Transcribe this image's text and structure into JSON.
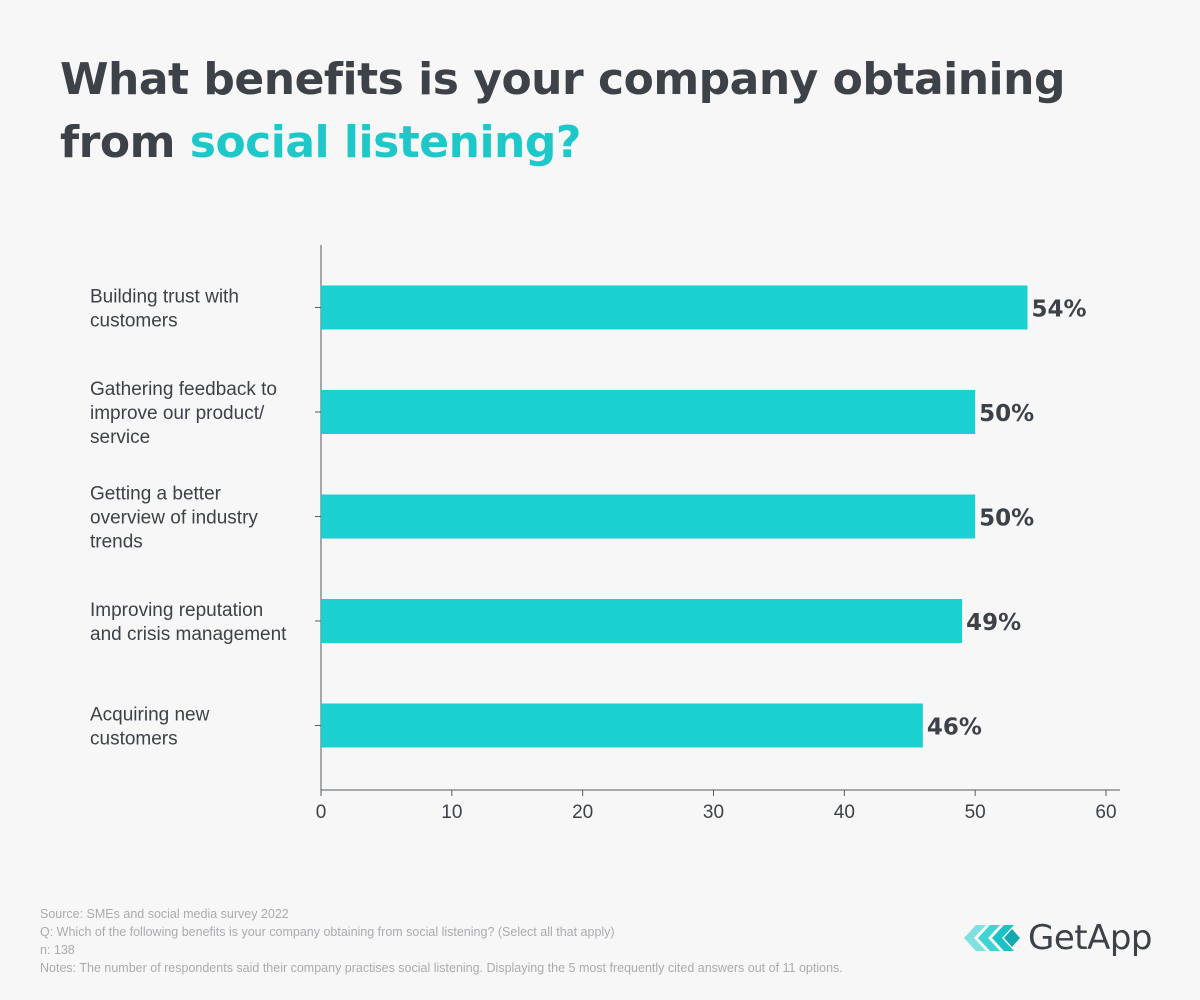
{
  "title": {
    "part1": "What benefits is your company obtaining from ",
    "accent": "social listening?"
  },
  "colors": {
    "bar": "#1ad0d0",
    "title_dark": "#3d4249",
    "title_accent": "#1ec8c9",
    "axis": "#555b62",
    "label": "#3d4249",
    "footer": "#a9abae",
    "background": "#f7f7f7"
  },
  "chart_data": {
    "type": "bar",
    "orientation": "horizontal",
    "categories": [
      [
        "Building trust with",
        "customers"
      ],
      [
        "Gathering feedback to",
        "improve our product/",
        "service"
      ],
      [
        "Getting a better",
        "overview of industry",
        "trends"
      ],
      [
        "Improving reputation",
        "and crisis management"
      ],
      [
        "Acquiring new",
        "customers"
      ]
    ],
    "values": [
      54,
      50,
      50,
      49,
      46
    ],
    "value_labels": [
      "54%",
      "50%",
      "50%",
      "49%",
      "46%"
    ],
    "xlim": [
      0,
      60
    ],
    "xticks": [
      0,
      10,
      20,
      30,
      40,
      50,
      60
    ],
    "xtick_labels": [
      "0",
      "10",
      "20",
      "30",
      "40",
      "50",
      "60"
    ],
    "grid": false,
    "legend": "none"
  },
  "footer": {
    "source": "Source: SMEs and social media survey 2022",
    "question": "Q: Which of the following benefits is your company obtaining from social listening? (Select all that apply)",
    "n": "n: 138",
    "notes": "Notes: The number of respondents said their company practises social listening. Displaying the 5 most frequently cited answers out of 11 options."
  },
  "logo": {
    "text": "GetApp",
    "icon": "getapp-chevrons-icon"
  }
}
